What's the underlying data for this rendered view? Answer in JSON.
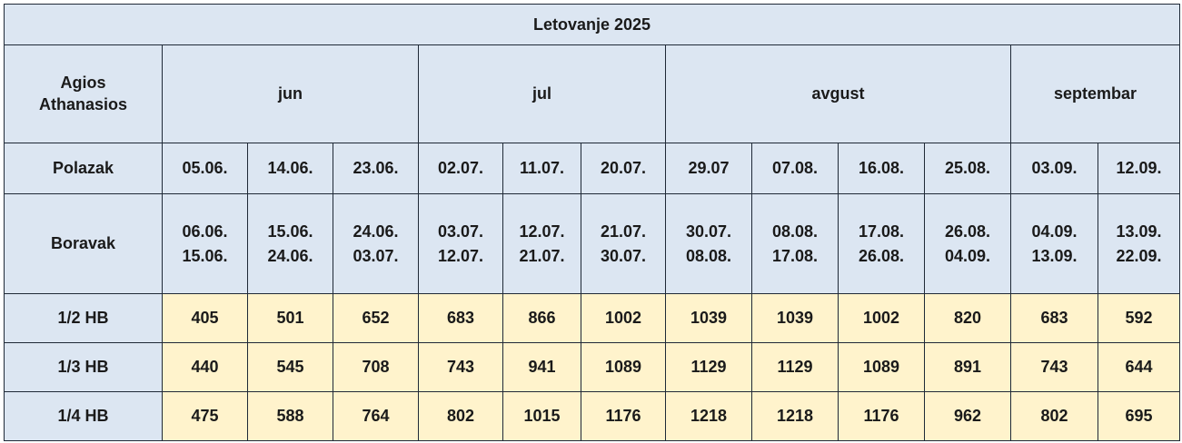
{
  "title": "Letovanje 2025",
  "destination": "Agios Athanasios",
  "months": [
    {
      "label": "jun",
      "span": 3
    },
    {
      "label": "jul",
      "span": 3
    },
    {
      "label": "avgust",
      "span": 4
    },
    {
      "label": "septembar",
      "span": 2
    }
  ],
  "departure": {
    "label": "Polazak",
    "dates": [
      "05.06.",
      "14.06.",
      "23.06.",
      "02.07.",
      "11.07.",
      "20.07.",
      "29.07",
      "07.08.",
      "16.08.",
      "25.08.",
      "03.09.",
      "12.09."
    ]
  },
  "stay": {
    "label": "Boravak",
    "periods": [
      [
        "06.06.",
        "15.06."
      ],
      [
        "15.06.",
        "24.06."
      ],
      [
        "24.06.",
        "03.07."
      ],
      [
        "03.07.",
        "12.07."
      ],
      [
        "12.07.",
        "21.07."
      ],
      [
        "21.07.",
        "30.07."
      ],
      [
        "30.07.",
        "08.08."
      ],
      [
        "08.08.",
        "17.08."
      ],
      [
        "17.08.",
        "26.08."
      ],
      [
        "26.08.",
        "04.09."
      ],
      [
        "04.09.",
        "13.09."
      ],
      [
        "13.09.",
        "22.09."
      ]
    ]
  },
  "prices": [
    {
      "label": "1/2 HB",
      "values": [
        "405",
        "501",
        "652",
        "683",
        "866",
        "1002",
        "1039",
        "1039",
        "1002",
        "820",
        "683",
        "592"
      ]
    },
    {
      "label": "1/3 HB",
      "values": [
        "440",
        "545",
        "708",
        "743",
        "941",
        "1089",
        "1129",
        "1129",
        "1089",
        "891",
        "743",
        "644"
      ]
    },
    {
      "label": "1/4 HB",
      "values": [
        "475",
        "588",
        "764",
        "802",
        "1015",
        "1176",
        "1218",
        "1218",
        "1176",
        "962",
        "802",
        "695"
      ]
    }
  ],
  "colors": {
    "header_bg": "#dce6f2",
    "price_bg": "#fff3cc",
    "border": "#1f2937"
  }
}
